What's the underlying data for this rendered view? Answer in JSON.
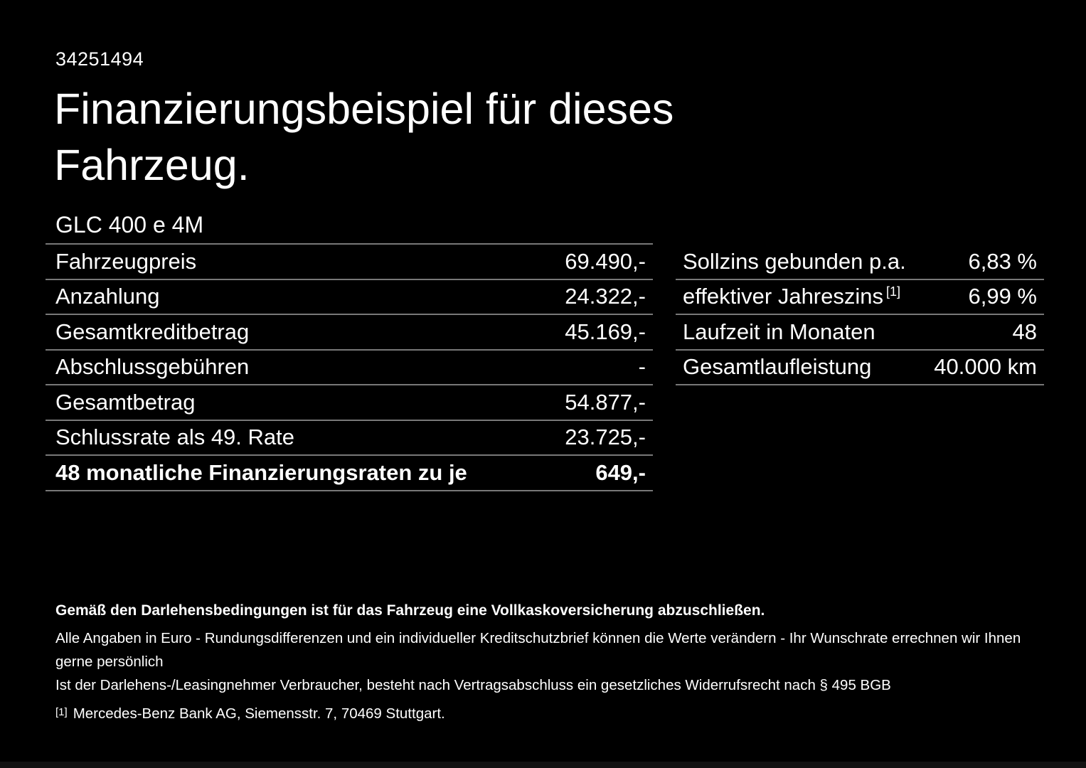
{
  "page": {
    "id_number": "34251494",
    "title": "Finanzierungsbeispiel für dieses Fahrzeug.",
    "model": "GLC 400 e 4M"
  },
  "finance_table": {
    "rows": [
      {
        "label": "Fahrzeugpreis",
        "value": "69.490,-"
      },
      {
        "label": "Anzahlung",
        "value": "24.322,-"
      },
      {
        "label": "Gesamtkreditbetrag",
        "value": "45.169,-"
      },
      {
        "label": "Abschlussgebühren",
        "value": "-"
      },
      {
        "label": "Gesamtbetrag",
        "value": "54.877,-"
      },
      {
        "label": "Schlussrate als 49. Rate",
        "value": "23.725,-"
      }
    ],
    "total_row": {
      "label": "48 monatliche Finanzierungsraten zu je",
      "value": "649,-"
    }
  },
  "conditions_table": {
    "rows": [
      {
        "label": "Sollzins gebunden p.a.",
        "footnote_ref": "",
        "value": "6,83 %"
      },
      {
        "label": "effektiver Jahreszins",
        "footnote_ref": "[1]",
        "value": "6,99 %"
      },
      {
        "label": "Laufzeit in Monaten",
        "footnote_ref": "",
        "value": "48"
      },
      {
        "label": "Gesamtlaufleistung",
        "footnote_ref": "",
        "value": "40.000 km"
      }
    ]
  },
  "footer": {
    "bold_note": "Gemäß den Darlehensbedingungen ist für das Fahrzeug eine Vollkaskoversicherung abzuschließen.",
    "note_line1": "Alle Angaben in Euro - Rundungsdifferenzen und ein individueller Kreditschutzbrief können die Werte verändern - Ihr Wunschrate errechnen wir Ihnen gerne persönlich",
    "note_line2": "Ist der Darlehens-/Leasingnehmer Verbraucher, besteht nach Vertragsabschluss ein gesetzliches Widerrufsrecht nach § 495 BGB",
    "footnote_marker": "[1]",
    "footnote_text": "Mercedes-Benz Bank AG, Siemensstr. 7, 70469 Stuttgart."
  },
  "colors": {
    "background": "#000000",
    "text": "#ffffff",
    "divider": "#787878"
  }
}
